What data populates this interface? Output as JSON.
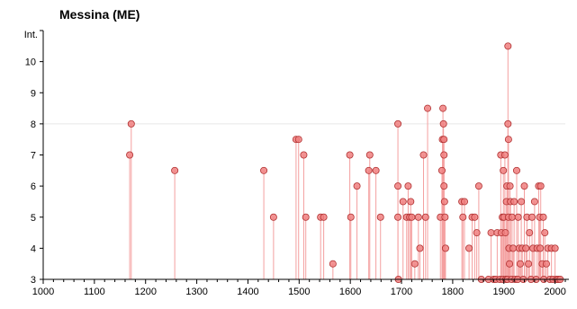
{
  "chart_data": {
    "type": "scatter",
    "title": "Messina (ME)",
    "ylabel": "Int.",
    "xlabel": "",
    "xlim": [
      1000,
      2020
    ],
    "ylim": [
      3,
      11
    ],
    "x_ticks": [
      1000,
      1100,
      1200,
      1300,
      1400,
      1500,
      1600,
      1700,
      1800,
      1900,
      2000
    ],
    "y_ticks": [
      3,
      4,
      5,
      6,
      7,
      8,
      9,
      10
    ],
    "grid_y_values": [
      8
    ],
    "grid": false,
    "legend": "none",
    "colors": {
      "marker_fill": "#f08080",
      "marker_stroke": "#b03030",
      "stem": "#f4a0a0",
      "grid": "#e6e6e6"
    },
    "points": [
      {
        "x": 1169,
        "y": 7
      },
      {
        "x": 1172,
        "y": 8
      },
      {
        "x": 1257,
        "y": 6.5
      },
      {
        "x": 1431,
        "y": 6.5
      },
      {
        "x": 1450,
        "y": 5
      },
      {
        "x": 1494,
        "y": 7.5
      },
      {
        "x": 1499,
        "y": 7.5
      },
      {
        "x": 1509,
        "y": 7
      },
      {
        "x": 1513,
        "y": 5
      },
      {
        "x": 1542,
        "y": 5
      },
      {
        "x": 1548,
        "y": 5
      },
      {
        "x": 1566,
        "y": 3.5
      },
      {
        "x": 1599,
        "y": 7
      },
      {
        "x": 1601,
        "y": 5
      },
      {
        "x": 1613,
        "y": 6
      },
      {
        "x": 1636,
        "y": 6.5
      },
      {
        "x": 1638,
        "y": 7
      },
      {
        "x": 1650,
        "y": 6.5
      },
      {
        "x": 1659,
        "y": 5
      },
      {
        "x": 1693,
        "y": 8
      },
      {
        "x": 1693,
        "y": 6
      },
      {
        "x": 1693,
        "y": 5
      },
      {
        "x": 1694,
        "y": 3
      },
      {
        "x": 1703,
        "y": 5.5
      },
      {
        "x": 1710,
        "y": 5
      },
      {
        "x": 1713,
        "y": 6
      },
      {
        "x": 1716,
        "y": 5
      },
      {
        "x": 1718,
        "y": 5.5
      },
      {
        "x": 1720,
        "y": 5
      },
      {
        "x": 1726,
        "y": 3.5
      },
      {
        "x": 1733,
        "y": 5
      },
      {
        "x": 1736,
        "y": 4
      },
      {
        "x": 1743,
        "y": 7
      },
      {
        "x": 1747,
        "y": 5
      },
      {
        "x": 1751,
        "y": 8.5
      },
      {
        "x": 1776,
        "y": 5
      },
      {
        "x": 1779,
        "y": 6.5
      },
      {
        "x": 1780,
        "y": 7.5
      },
      {
        "x": 1781,
        "y": 8.5
      },
      {
        "x": 1782,
        "y": 8
      },
      {
        "x": 1783,
        "y": 7.5
      },
      {
        "x": 1783,
        "y": 7
      },
      {
        "x": 1783,
        "y": 6
      },
      {
        "x": 1784,
        "y": 5.5
      },
      {
        "x": 1785,
        "y": 5
      },
      {
        "x": 1786,
        "y": 4
      },
      {
        "x": 1818,
        "y": 5.5
      },
      {
        "x": 1820,
        "y": 5
      },
      {
        "x": 1823,
        "y": 5.5
      },
      {
        "x": 1832,
        "y": 4
      },
      {
        "x": 1838,
        "y": 5
      },
      {
        "x": 1843,
        "y": 5
      },
      {
        "x": 1847,
        "y": 4.5
      },
      {
        "x": 1851,
        "y": 6
      },
      {
        "x": 1856,
        "y": 3
      },
      {
        "x": 1870,
        "y": 3
      },
      {
        "x": 1875,
        "y": 4.5
      },
      {
        "x": 1880,
        "y": 3
      },
      {
        "x": 1884,
        "y": 3
      },
      {
        "x": 1887,
        "y": 4.5
      },
      {
        "x": 1892,
        "y": 3
      },
      {
        "x": 1894,
        "y": 7
      },
      {
        "x": 1895,
        "y": 4.5
      },
      {
        "x": 1897,
        "y": 5
      },
      {
        "x": 1898,
        "y": 3
      },
      {
        "x": 1899,
        "y": 6.5
      },
      {
        "x": 1900,
        "y": 5
      },
      {
        "x": 1902,
        "y": 7
      },
      {
        "x": 1903,
        "y": 4.5
      },
      {
        "x": 1904,
        "y": 3
      },
      {
        "x": 1905,
        "y": 5.5
      },
      {
        "x": 1906,
        "y": 6
      },
      {
        "x": 1907,
        "y": 3
      },
      {
        "x": 1908,
        "y": 10.5
      },
      {
        "x": 1908,
        "y": 8
      },
      {
        "x": 1909,
        "y": 7.5
      },
      {
        "x": 1909,
        "y": 5
      },
      {
        "x": 1910,
        "y": 4
      },
      {
        "x": 1911,
        "y": 3.5
      },
      {
        "x": 1912,
        "y": 6
      },
      {
        "x": 1913,
        "y": 5.5
      },
      {
        "x": 1915,
        "y": 3
      },
      {
        "x": 1916,
        "y": 5
      },
      {
        "x": 1918,
        "y": 4
      },
      {
        "x": 1920,
        "y": 5.5
      },
      {
        "x": 1922,
        "y": 3
      },
      {
        "x": 1925,
        "y": 6.5
      },
      {
        "x": 1927,
        "y": 3
      },
      {
        "x": 1928,
        "y": 5
      },
      {
        "x": 1930,
        "y": 4
      },
      {
        "x": 1932,
        "y": 3.5
      },
      {
        "x": 1934,
        "y": 5.5
      },
      {
        "x": 1936,
        "y": 4
      },
      {
        "x": 1938,
        "y": 3
      },
      {
        "x": 1940,
        "y": 6
      },
      {
        "x": 1943,
        "y": 4
      },
      {
        "x": 1945,
        "y": 5
      },
      {
        "x": 1948,
        "y": 3.5
      },
      {
        "x": 1950,
        "y": 4.5
      },
      {
        "x": 1953,
        "y": 3
      },
      {
        "x": 1955,
        "y": 5
      },
      {
        "x": 1957,
        "y": 4
      },
      {
        "x": 1960,
        "y": 5.5
      },
      {
        "x": 1963,
        "y": 3
      },
      {
        "x": 1965,
        "y": 4
      },
      {
        "x": 1968,
        "y": 6
      },
      {
        "x": 1970,
        "y": 5
      },
      {
        "x": 1971,
        "y": 4
      },
      {
        "x": 1972,
        "y": 6
      },
      {
        "x": 1975,
        "y": 3.5
      },
      {
        "x": 1977,
        "y": 5
      },
      {
        "x": 1978,
        "y": 3
      },
      {
        "x": 1980,
        "y": 4.5
      },
      {
        "x": 1983,
        "y": 3.5
      },
      {
        "x": 1986,
        "y": 4
      },
      {
        "x": 1990,
        "y": 3
      },
      {
        "x": 1993,
        "y": 4
      },
      {
        "x": 1996,
        "y": 3
      },
      {
        "x": 2000,
        "y": 4
      },
      {
        "x": 2003,
        "y": 3
      },
      {
        "x": 2006,
        "y": 3
      },
      {
        "x": 2010,
        "y": 3
      }
    ]
  }
}
